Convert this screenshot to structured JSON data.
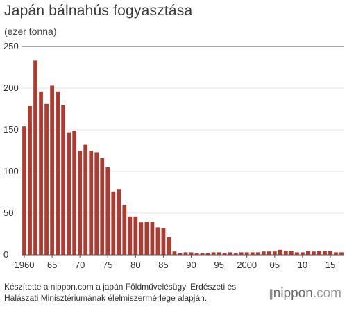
{
  "header": {
    "title": "Japán bálnahús fogyasztása",
    "unit": "(ezer tonna)"
  },
  "footer": {
    "source_line1": "Készítette a nippon.com a japán Földművelésügyi Erdészeti és",
    "source_line2": "Halászati Minisztériumának élelmiszermérlege alapján.",
    "brand_name": "nippon",
    "brand_domain": ".com",
    "brand_marks": "||"
  },
  "colors": {
    "bar": "#b03a30",
    "grid": "#e3e3e3",
    "axis": "#555555",
    "text": "#333333"
  },
  "chart_data": {
    "type": "bar",
    "ylim": [
      0,
      250
    ],
    "yticks": [
      0,
      50,
      100,
      150,
      200,
      250
    ],
    "grid": true,
    "x": [
      1960,
      1961,
      1962,
      1963,
      1964,
      1965,
      1966,
      1967,
      1968,
      1969,
      1970,
      1971,
      1972,
      1973,
      1974,
      1975,
      1976,
      1977,
      1978,
      1979,
      1980,
      1981,
      1982,
      1983,
      1984,
      1985,
      1986,
      1987,
      1988,
      1989,
      1990,
      1991,
      1992,
      1993,
      1994,
      1995,
      1996,
      1997,
      1998,
      1999,
      2000,
      2001,
      2002,
      2003,
      2004,
      2005,
      2006,
      2007,
      2008,
      2009,
      2010,
      2011,
      2012,
      2013,
      2014,
      2015,
      2016,
      2017
    ],
    "values": [
      154,
      179,
      233,
      196,
      181,
      203,
      196,
      180,
      147,
      149,
      125,
      132,
      125,
      123,
      116,
      105,
      76,
      79,
      60,
      46,
      46,
      39,
      40,
      40,
      33,
      32,
      21,
      4,
      2,
      3,
      3,
      2,
      2,
      2,
      3,
      3,
      2,
      3,
      2,
      3,
      3,
      3,
      3,
      4,
      4,
      4,
      6,
      5,
      5,
      3,
      3,
      5,
      4,
      5,
      5,
      5,
      3,
      3
    ],
    "xticks": [
      {
        "year": 1960,
        "label": "1960"
      },
      {
        "year": 1965,
        "label": "65"
      },
      {
        "year": 1970,
        "label": "70"
      },
      {
        "year": 1975,
        "label": "75"
      },
      {
        "year": 1980,
        "label": "80"
      },
      {
        "year": 1985,
        "label": "85"
      },
      {
        "year": 1990,
        "label": "90"
      },
      {
        "year": 1995,
        "label": "95"
      },
      {
        "year": 2000,
        "label": "2000"
      },
      {
        "year": 2005,
        "label": "05"
      },
      {
        "year": 2010,
        "label": "10"
      },
      {
        "year": 2015,
        "label": "15"
      }
    ]
  }
}
